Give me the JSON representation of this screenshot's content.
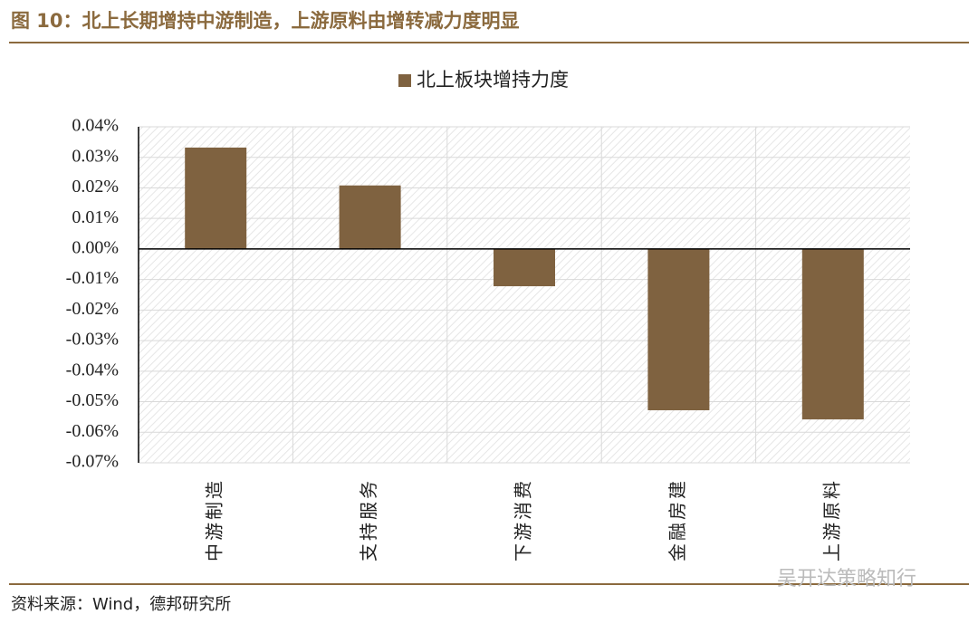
{
  "header": {
    "title": "图 10：北上长期增持中游制造，上游原料由增转减力度明显"
  },
  "chart_data": {
    "type": "bar",
    "categories": [
      "中游制造",
      "支持服务",
      "下游消费",
      "金融房建",
      "上游原料"
    ],
    "series": [
      {
        "name": "北上板块增持力度",
        "color": "#7f6240",
        "values": [
          0.0332,
          0.0208,
          -0.0122,
          -0.0528,
          -0.0558
        ]
      }
    ],
    "ylim": [
      -0.07,
      0.04
    ],
    "yticks": [
      {
        "value": 0.04,
        "label": "0.04%"
      },
      {
        "value": 0.03,
        "label": "0.03%"
      },
      {
        "value": 0.02,
        "label": "0.02%"
      },
      {
        "value": 0.01,
        "label": "0.01%"
      },
      {
        "value": 0,
        "label": "0.00%"
      },
      {
        "value": -0.01,
        "label": "-0.01%"
      },
      {
        "value": -0.02,
        "label": "-0.02%"
      },
      {
        "value": -0.03,
        "label": "-0.03%"
      },
      {
        "value": -0.04,
        "label": "-0.04%"
      },
      {
        "value": -0.05,
        "label": "-0.05%"
      },
      {
        "value": -0.06,
        "label": "-0.06%"
      },
      {
        "value": -0.07,
        "label": "-0.07%"
      }
    ],
    "grid": true,
    "legend": "top"
  },
  "footer": {
    "source": "资料来源：Wind，德邦研究所",
    "watermark": "吴开达策略知行"
  }
}
